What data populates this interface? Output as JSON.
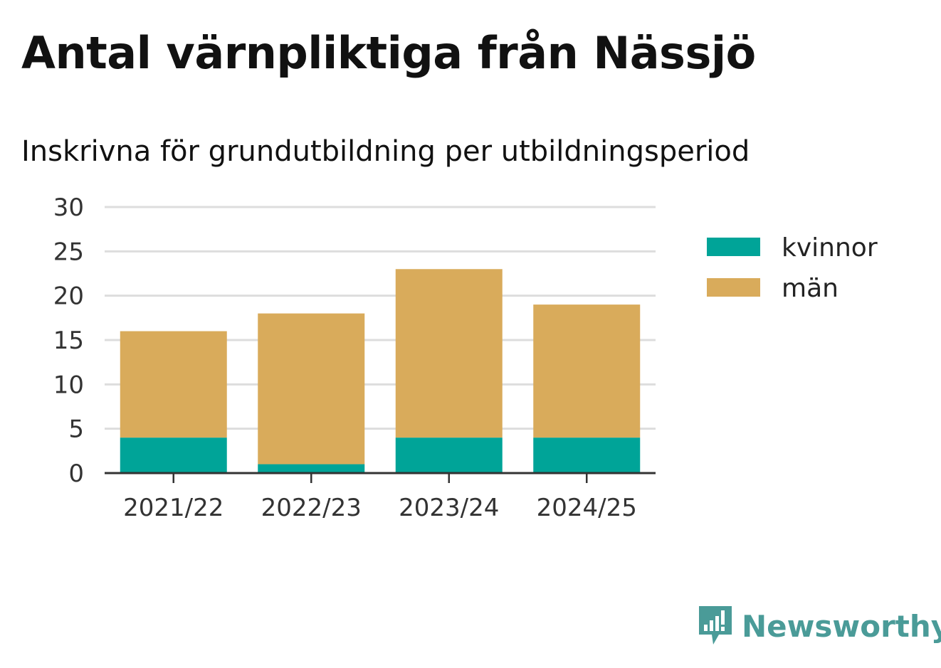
{
  "chart_data": {
    "type": "bar",
    "stacked": true,
    "title": "Antal värnpliktiga från Nässjö",
    "subtitle": "Inskrivna för grundutbildning per utbildningsperiod",
    "categories": [
      "2021/22",
      "2022/23",
      "2023/24",
      "2024/25"
    ],
    "series": [
      {
        "name": "kvinnor",
        "color": "#00a498",
        "values": [
          4,
          1,
          4,
          4
        ]
      },
      {
        "name": "män",
        "color": "#d9ab5b",
        "values": [
          12,
          17,
          19,
          15
        ]
      }
    ],
    "ylim": [
      0,
      30
    ],
    "yticks": [
      0,
      5,
      10,
      15,
      20,
      25,
      30
    ],
    "grid": true,
    "legend_position": "right"
  },
  "brand": {
    "name": "Newsworthy",
    "icon": "newsworthy-logo-icon",
    "color": "#4a9b98"
  }
}
